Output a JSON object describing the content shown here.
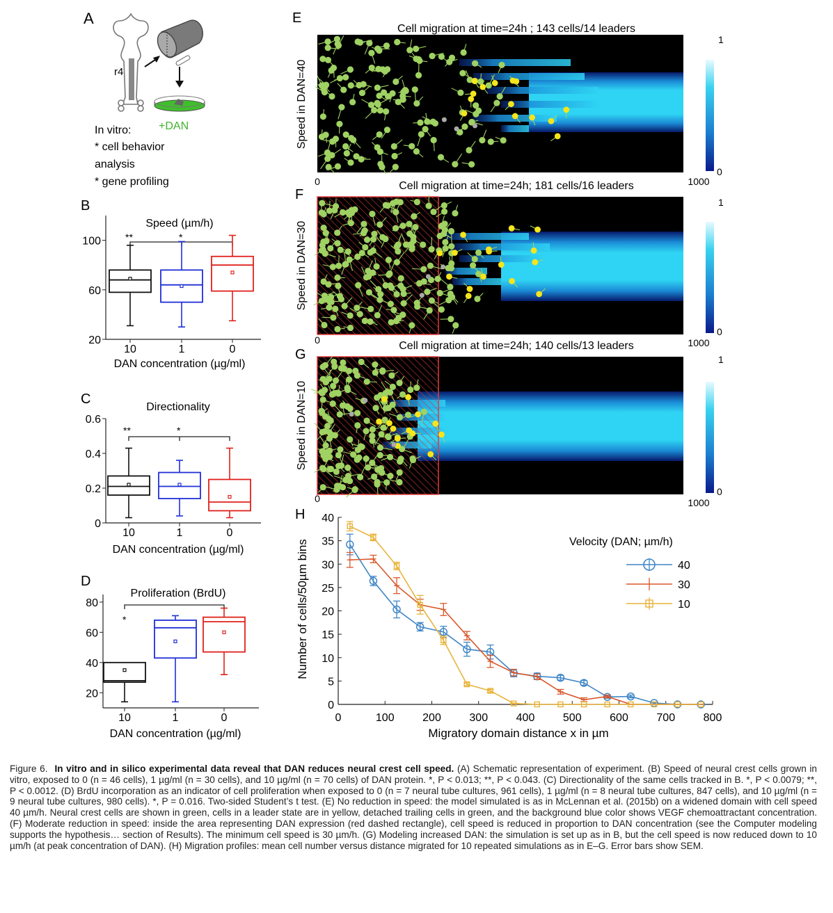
{
  "panels": {
    "A": {
      "label": "A",
      "rhombomere": "r4",
      "dan_label": "+DAN",
      "lines": [
        "In vitro:",
        "* cell behavior",
        "analysis",
        "* gene profiling"
      ]
    },
    "B": {
      "label": "B",
      "title": "Speed (µm/h)",
      "xlabel": "DAN concentration (µg/ml)",
      "sig": [
        "**",
        "*"
      ]
    },
    "C": {
      "label": "C",
      "title": "Directionality",
      "xlabel": "DAN concentration (µg/ml)",
      "sig": [
        "**",
        "*"
      ]
    },
    "D": {
      "label": "D",
      "title": "Proliferation (BrdU)",
      "xlabel": "DAN concentration (µg/ml)",
      "sig": [
        "*"
      ]
    },
    "E": {
      "label": "E",
      "title": "Cell migration at time=24h ; 143 cells/14 leaders",
      "ylabel": "Speed in DAN=40",
      "x0": "0",
      "x1": "1000",
      "cbar_top": "1",
      "cbar_bottom": "0"
    },
    "F": {
      "label": "F",
      "title": "Cell migration at time=24h; 181 cells/16 leaders",
      "ylabel": "Speed in DAN=30",
      "x0": "0",
      "x1": "1000",
      "cbar_top": "1",
      "cbar_bottom": "0"
    },
    "G": {
      "label": "G",
      "title": "Cell migration at time=24h; 140 cells/13 leaders",
      "ylabel": "Speed in DAN=10",
      "x0": "0",
      "x1": "1000",
      "cbar_top": "1",
      "cbar_bottom": "0"
    },
    "H": {
      "label": "H"
    }
  },
  "chart_data": [
    {
      "type": "box",
      "panel": "B",
      "title": "Speed (µm/h)",
      "xlabel": "DAN concentration (µg/ml)",
      "categories": [
        "10",
        "1",
        "0"
      ],
      "colors": [
        "#111111",
        "#1f2fd6",
        "#e0201b"
      ],
      "ylim": [
        20,
        120
      ],
      "yticks": [
        20,
        60,
        100
      ],
      "boxes": [
        {
          "whisker_low": 31,
          "q1": 58,
          "median": 68,
          "q3": 76,
          "whisker_high": 96,
          "mean": 69
        },
        {
          "whisker_low": 30,
          "q1": 50,
          "median": 64,
          "q3": 76,
          "whisker_high": 99,
          "mean": 63
        },
        {
          "whisker_low": 35,
          "q1": 59,
          "median": 80,
          "q3": 87,
          "whisker_high": 104,
          "mean": 74
        }
      ]
    },
    {
      "type": "box",
      "panel": "C",
      "title": "Directionality",
      "xlabel": "DAN concentration (µg/ml)",
      "categories": [
        "10",
        "1",
        "0"
      ],
      "colors": [
        "#111111",
        "#1f2fd6",
        "#e0201b"
      ],
      "ylim": [
        0,
        0.6
      ],
      "yticks": [
        0,
        0.2,
        0.4,
        0.6
      ],
      "ytick_labels": [
        "0",
        "0.2",
        "0.4",
        "0.6"
      ],
      "boxes": [
        {
          "whisker_low": 0.03,
          "q1": 0.16,
          "median": 0.21,
          "q3": 0.27,
          "whisker_high": 0.43,
          "mean": 0.22
        },
        {
          "whisker_low": 0.04,
          "q1": 0.14,
          "median": 0.21,
          "q3": 0.29,
          "whisker_high": 0.36,
          "mean": 0.22
        },
        {
          "whisker_low": 0.03,
          "q1": 0.07,
          "median": 0.12,
          "q3": 0.25,
          "whisker_high": 0.43,
          "mean": 0.15
        }
      ]
    },
    {
      "type": "box",
      "panel": "D",
      "title": "Proliferation (BrdU)",
      "xlabel": "DAN concentration (µg/ml)",
      "categories": [
        "10",
        "1",
        "0"
      ],
      "colors": [
        "#111111",
        "#1f2fd6",
        "#e0201b"
      ],
      "ylim": [
        10,
        85
      ],
      "yticks": [
        20,
        40,
        60,
        80
      ],
      "boxes": [
        {
          "whisker_low": 14,
          "q1": 27,
          "median": 28,
          "q3": 40,
          "whisker_high": 40,
          "mean": 35
        },
        {
          "whisker_low": 14,
          "q1": 43,
          "median": 63,
          "q3": 68,
          "whisker_high": 71,
          "mean": 54
        },
        {
          "whisker_low": 32,
          "q1": 47,
          "median": 67,
          "q3": 70,
          "whisker_high": 76,
          "mean": 60
        }
      ]
    },
    {
      "type": "line",
      "panel": "H",
      "xlabel": "Migratory domain distance x in µm",
      "ylabel": "Number of cells/50µm bins",
      "xlim": [
        0,
        800
      ],
      "ylim": [
        0,
        40
      ],
      "xticks": [
        0,
        100,
        200,
        300,
        400,
        500,
        600,
        700,
        800
      ],
      "yticks": [
        0,
        5,
        10,
        15,
        20,
        25,
        30,
        35,
        40
      ],
      "legend_title": "Velocity (DAN; µm/h)",
      "legend_position": "top-right",
      "x": [
        25,
        75,
        125,
        175,
        225,
        275,
        325,
        375,
        425,
        475,
        525,
        575,
        625,
        675,
        725,
        775
      ],
      "series": [
        {
          "name": "40",
          "color": "#3f86c6",
          "marker": "circle",
          "values": [
            34.2,
            26.4,
            20.3,
            16.6,
            15.5,
            11.8,
            11.2,
            6.7,
            6.0,
            5.7,
            4.6,
            1.6,
            1.7,
            0.3,
            0,
            0
          ],
          "errors": [
            2.2,
            1.0,
            1.8,
            0.9,
            1.2,
            1.5,
            1.5,
            0.8,
            0.7,
            0.5,
            0.5,
            0.3,
            0.3,
            0.2,
            0,
            0
          ]
        },
        {
          "name": "30",
          "color": "#d9572b",
          "marker": "plus",
          "values": [
            30.9,
            31.1,
            25.4,
            21.3,
            20.3,
            14.7,
            9.2,
            6.8,
            5.9,
            2.7,
            1.0,
            1.7,
            0,
            0,
            0,
            0
          ],
          "errors": [
            1.6,
            0.8,
            1.7,
            1.2,
            1.3,
            0.9,
            1.3,
            0.7,
            0.6,
            0.5,
            0.4,
            0.3,
            0,
            0,
            0,
            0
          ]
        },
        {
          "name": "10",
          "color": "#e8b33a",
          "marker": "square",
          "values": [
            38.1,
            35.7,
            29.6,
            21.3,
            13.7,
            4.3,
            2.9,
            0.2,
            0,
            0,
            0,
            0,
            0,
            0,
            0,
            0
          ],
          "errors": [
            1.0,
            0.7,
            0.8,
            2.0,
            0.9,
            0.3,
            0.3,
            0.1,
            0,
            0,
            0,
            0,
            0,
            0,
            0,
            0
          ]
        }
      ]
    }
  ],
  "caption": {
    "label": "Figure 6.",
    "title": "In vitro and in silico experimental data reveal that DAN reduces neural crest cell speed.",
    "text": "(A) Schematic representation of experiment. (B) Speed of neural crest cells grown in vitro, exposed to 0 (n = 46 cells), 1 µg/ml (n = 30 cells), and 10 µg/ml (n = 70 cells) of DAN protein. *, P < 0.013; **, P < 0.043. (C) Directionality of the same cells tracked in B. *, P < 0.0079; **, P < 0.0012. (D) BrdU incorporation as an indicator of cell proliferation when exposed to 0 (n = 7 neural tube cultures, 961 cells), 1 µg/ml (n = 8 neural tube cultures, 847 cells), and 10 µg/ml (n = 9 neural tube cultures, 980 cells). *, P = 0.016. Two-sided Student’s t test. (E) No reduction in speed: the model simulated is as in McLennan et al. (2015b) on a widened domain with cell speed 40 µm/h. Neural crest cells are shown in green, cells in a leader state are in yellow, detached trailing cells in green, and the background blue color shows VEGF chemoattractant concentration. (F) Moderate reduction in speed: inside the area representing DAN expression (red dashed rectangle), cell speed is reduced in proportion to DAN concentration (see the Computer modeling supports the hypothesis… section of Results). The minimum cell speed is 30 µm/h. (G) Modeling increased DAN: the simulation is set up as in B, but the cell speed is now reduced down to 10 µm/h (at peak concentration of DAN). (H) Migration profiles: mean cell number versus distance migrated for 10 repeated simulations as in E–G. Error bars show SEM."
  },
  "colors": {
    "cell_green": "#9fd262",
    "leader_yellow": "#f5e51c",
    "vegf_cyan": "#2fd0f2",
    "dan_red": "#e23a3a"
  }
}
